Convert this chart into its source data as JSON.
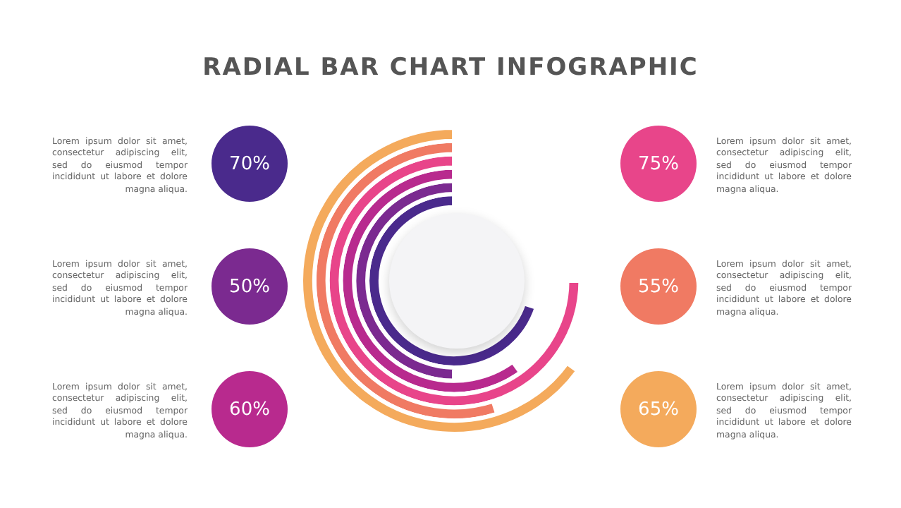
{
  "chart_data": {
    "type": "other",
    "title": "RADIAL BAR CHART INFOGRAPHIC",
    "categories": [
      "Lorem ipsum dolor sit amet, consectetur adipiscing elit, sed do eiusmod tempor incididunt ut labore et dolore magna aliqua.",
      "Lorem ipsum dolor sit amet, consectetur adipiscing elit, sed do eiusmod tempor incididunt ut labore et dolore magna aliqua.",
      "Lorem ipsum dolor sit amet, consectetur adipiscing elit, sed do eiusmod tempor incididunt ut labore et dolore magna aliqua.",
      "Lorem ipsum dolor sit amet, consectetur adipiscing elit, sed do eiusmod tempor incididunt ut labore et dolore magna aliqua.",
      "Lorem ipsum dolor sit amet, consectetur adipiscing elit, sed do eiusmod tempor incididunt ut labore et dolore magna aliqua.",
      "Lorem ipsum dolor sit amet, consectetur adipiscing elit, sed do eiusmod tempor incididunt ut labore et dolore magna aliqua."
    ],
    "values": [
      70,
      50,
      60,
      75,
      55,
      65
    ],
    "value_labels": [
      "70%",
      "50%",
      "60%",
      "75%",
      "55%",
      "65%"
    ],
    "colors": [
      "#4a2a8c",
      "#7b2a90",
      "#b82a8e",
      "#e8458a",
      "#f07a63",
      "#f4aa5c"
    ]
  }
}
